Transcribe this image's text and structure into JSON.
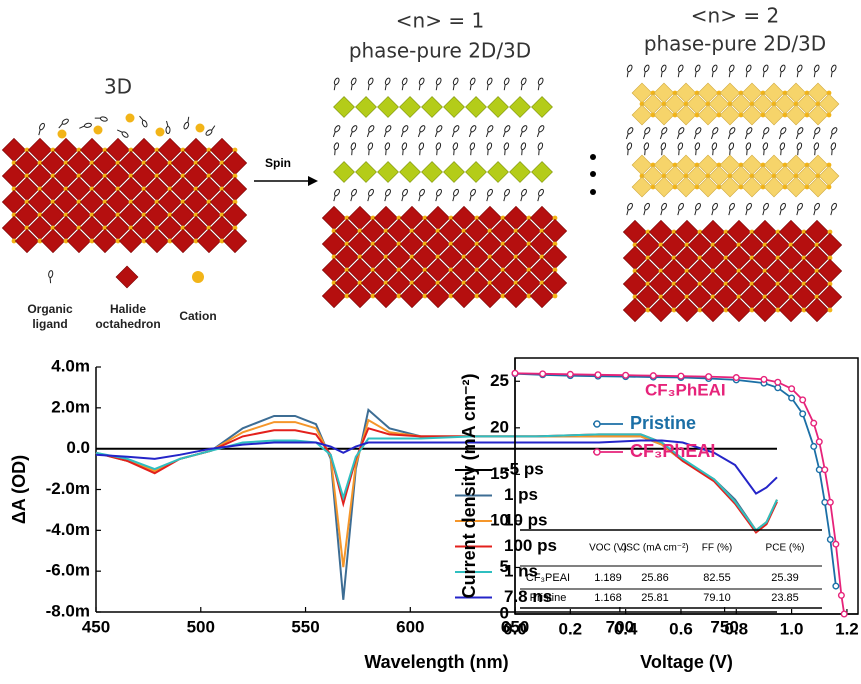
{
  "diagram": {
    "panels": [
      {
        "title": "3D"
      },
      {
        "title": "<n> = 1",
        "subtitle": "phase-pure 2D/3D"
      },
      {
        "title": "<n> = 2",
        "subtitle": "phase-pure 2D/3D"
      }
    ],
    "arrow_label": "Spin",
    "legend": [
      "Organic ligand",
      "Halide octahedron",
      "Cation"
    ]
  },
  "chart_data": [
    {
      "type": "line",
      "x_label": "Wavelength (nm)",
      "y_label": "ΔA (OD)",
      "annotation": "CF₃PhEAI",
      "x": [
        450,
        465,
        478,
        490,
        505,
        520,
        535,
        545,
        555,
        562,
        568,
        574,
        580,
        590,
        605,
        630,
        660,
        690,
        710,
        720,
        730,
        745,
        755,
        765,
        770,
        775
      ],
      "xlim": [
        450,
        775
      ],
      "xticks": [
        450,
        500,
        550,
        600,
        650,
        700,
        750
      ],
      "ylim": [
        -0.008,
        0.004
      ],
      "yticks": [
        {
          "value": 0.004,
          "label": "4.0m"
        },
        {
          "value": 0.002,
          "label": "2.0m"
        },
        {
          "value": 0,
          "label": "0.0"
        },
        {
          "value": -0.002,
          "label": "-2.0m"
        },
        {
          "value": -0.004,
          "label": "-4.0m"
        },
        {
          "value": -0.006,
          "label": "-6.0m"
        },
        {
          "value": -0.008,
          "label": "-8.0m"
        }
      ],
      "legend_position": "lower left",
      "series": [
        {
          "name": "-5 ps",
          "color": "#000000",
          "values": [
            0,
            0,
            0,
            0,
            0,
            0,
            0,
            0,
            0,
            0,
            0,
            0,
            0,
            0,
            0,
            0,
            0,
            0,
            0,
            0,
            0,
            0,
            0,
            0,
            0,
            0
          ]
        },
        {
          "name": "1 ps",
          "color": "#3d6d94",
          "values": [
            -0.0002,
            -0.0006,
            -0.0011,
            -0.0005,
            -0.0001,
            0.001,
            0.0016,
            0.0016,
            0.0012,
            -0.0005,
            -0.0074,
            -0.001,
            0.0019,
            0.001,
            0.0006,
            0.0006,
            0.0006,
            0.0006,
            0.0006,
            0.0002,
            -0.0006,
            -0.0015,
            -0.0025,
            -0.004,
            -0.0036,
            -0.0025
          ]
        },
        {
          "name": "10 ps",
          "color": "#f5962a",
          "values": [
            -0.0002,
            -0.0006,
            -0.0011,
            -0.0005,
            -0.0001,
            0.0008,
            0.0013,
            0.0013,
            0.001,
            -0.0004,
            -0.0058,
            -0.0008,
            0.0014,
            0.0008,
            0.0006,
            0.0006,
            0.0006,
            0.0006,
            0.0006,
            0.0002,
            -0.0006,
            -0.0015,
            -0.0026,
            -0.004,
            -0.0036,
            -0.0025
          ]
        },
        {
          "name": "100 ps",
          "color": "#e3201c",
          "values": [
            -0.0002,
            -0.0006,
            -0.0012,
            -0.0005,
            -0.0001,
            0.0006,
            0.0009,
            0.0009,
            0.0007,
            -0.0003,
            -0.0027,
            -0.0005,
            0.001,
            0.0007,
            0.0006,
            0.0006,
            0.0006,
            0.0007,
            0.0007,
            0.0003,
            -0.0006,
            -0.0016,
            -0.0027,
            -0.0041,
            -0.0037,
            -0.0026
          ]
        },
        {
          "name": "1 ns",
          "color": "#2fbfc0",
          "values": [
            -0.0002,
            -0.0005,
            -0.001,
            -0.0005,
            -0.0001,
            0.0003,
            0.0004,
            0.0004,
            0.0003,
            -0.0003,
            -0.0024,
            -0.0004,
            0.0005,
            0.0005,
            0.0005,
            0.0006,
            0.0006,
            0.0007,
            0.0007,
            0.0003,
            -0.0005,
            -0.0015,
            -0.0026,
            -0.004,
            -0.0036,
            -0.0025
          ]
        },
        {
          "name": "7.8 ns",
          "color": "#2424c8",
          "values": [
            -0.0003,
            -0.0004,
            -0.0005,
            -0.0003,
            0,
            0.0002,
            0.0003,
            0.0003,
            0.0003,
            0.0001,
            -0.0002,
            0.0001,
            0.0003,
            0.0003,
            0.0003,
            0.0003,
            0.0003,
            0.0003,
            0.0004,
            0.0004,
            0.0003,
            -0.0002,
            -0.0008,
            -0.0022,
            -0.0019,
            -0.0014
          ]
        }
      ]
    },
    {
      "type": "line",
      "markers": true,
      "x_label": "Voltage (V)",
      "y_label": "Current density (mA cm⁻²)",
      "x": [
        0,
        0.1,
        0.2,
        0.3,
        0.4,
        0.5,
        0.6,
        0.7,
        0.8,
        0.9,
        0.95,
        1.0,
        1.04,
        1.08,
        1.1,
        1.12,
        1.14,
        1.16,
        1.18,
        1.19
      ],
      "xlim": [
        0,
        1.24
      ],
      "xticks": [
        {
          "value": 0,
          "label": "0.0"
        },
        0.2,
        0.4,
        0.6,
        0.8,
        {
          "value": 1,
          "label": "1.0"
        },
        1.2
      ],
      "ylim": [
        0,
        27.5
      ],
      "yticks": [
        0,
        5,
        10,
        15,
        20,
        25
      ],
      "legend_position": "upper left",
      "series": [
        {
          "name": "Pristine",
          "color": "#1b6fa6",
          "values": [
            25.81,
            25.7,
            25.6,
            25.55,
            25.5,
            25.45,
            25.4,
            25.3,
            25.15,
            24.8,
            24.3,
            23.2,
            21.5,
            18.0,
            15.5,
            12.0,
            8.0,
            3.0,
            null,
            null
          ]
        },
        {
          "name": "CF₃PhEAI",
          "color": "#e6237a",
          "values": [
            25.86,
            25.8,
            25.75,
            25.7,
            25.65,
            25.6,
            25.55,
            25.5,
            25.4,
            25.2,
            24.9,
            24.2,
            23.0,
            20.5,
            18.5,
            15.5,
            12.0,
            7.5,
            2.0,
            0
          ]
        }
      ],
      "table": {
        "columns": [
          "VOC (V)",
          "JSC (mA cm⁻²)",
          "FF (%)",
          "PCE (%)"
        ],
        "rows": [
          [
            "CF₃PEAI",
            "1.189",
            "25.86",
            "82.55",
            "25.39"
          ],
          [
            "Pristine",
            "1.168",
            "25.81",
            "79.10",
            "23.85"
          ]
        ]
      }
    }
  ]
}
